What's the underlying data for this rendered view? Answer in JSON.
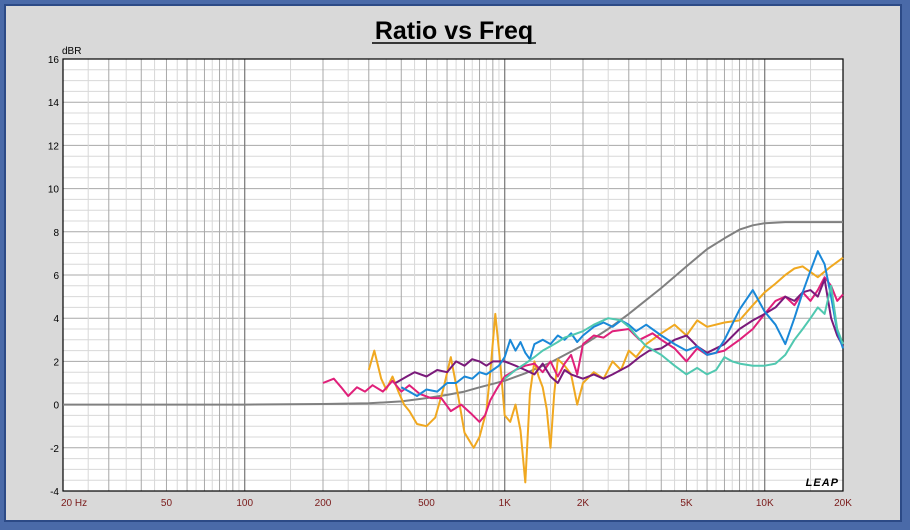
{
  "chart_data": {
    "type": "line",
    "title": "Ratio vs Freq",
    "ylabel": "dBR",
    "xlabel": "",
    "xscale": "log",
    "xlim": [
      20,
      20000
    ],
    "ylim": [
      -4,
      16
    ],
    "grid": true,
    "yticks": [
      "16",
      "14",
      "12",
      "10",
      "8",
      "6",
      "4",
      "2",
      "0",
      "-2",
      "-4"
    ],
    "ytick_values": [
      16,
      14,
      12,
      10,
      8,
      6,
      4,
      2,
      0,
      -2,
      -4
    ],
    "xticks": [
      "20  Hz",
      "50",
      "100",
      "200",
      "500",
      "1K",
      "2K",
      "5K",
      "10K",
      "20K"
    ],
    "xtick_values": [
      20,
      50,
      100,
      200,
      500,
      1000,
      2000,
      5000,
      10000,
      20000
    ],
    "watermark": "LEAP",
    "series": [
      {
        "color": "#808080",
        "points": [
          [
            20,
            0
          ],
          [
            100,
            0
          ],
          [
            200,
            0.03
          ],
          [
            300,
            0.06
          ],
          [
            400,
            0.15
          ],
          [
            500,
            0.3
          ],
          [
            600,
            0.45
          ],
          [
            700,
            0.6
          ],
          [
            800,
            0.8
          ],
          [
            1000,
            1.1
          ],
          [
            1200,
            1.45
          ],
          [
            1500,
            1.95
          ],
          [
            2000,
            2.75
          ],
          [
            2500,
            3.5
          ],
          [
            3000,
            4.2
          ],
          [
            4000,
            5.4
          ],
          [
            5000,
            6.4
          ],
          [
            6000,
            7.2
          ],
          [
            7000,
            7.7
          ],
          [
            8000,
            8.1
          ],
          [
            9000,
            8.3
          ],
          [
            10000,
            8.4
          ],
          [
            12000,
            8.45
          ],
          [
            15000,
            8.45
          ],
          [
            20000,
            8.45
          ]
        ]
      },
      {
        "color": "#f0a820",
        "points": [
          [
            300,
            1.6
          ],
          [
            315,
            2.5
          ],
          [
            335,
            1.2
          ],
          [
            350,
            0.7
          ],
          [
            370,
            1.3
          ],
          [
            390,
            0.6
          ],
          [
            410,
            0.0
          ],
          [
            430,
            -0.3
          ],
          [
            460,
            -0.9
          ],
          [
            500,
            -1.0
          ],
          [
            540,
            -0.6
          ],
          [
            580,
            0.7
          ],
          [
            620,
            2.2
          ],
          [
            660,
            0.5
          ],
          [
            700,
            -1.3
          ],
          [
            760,
            -2.0
          ],
          [
            800,
            -1.5
          ],
          [
            850,
            -0.3
          ],
          [
            880,
            1.5
          ],
          [
            920,
            4.2
          ],
          [
            960,
            2.0
          ],
          [
            1000,
            -0.5
          ],
          [
            1050,
            -0.8
          ],
          [
            1100,
            0.0
          ],
          [
            1150,
            -1.2
          ],
          [
            1200,
            -3.6
          ],
          [
            1250,
            0.5
          ],
          [
            1300,
            2.0
          ],
          [
            1350,
            1.3
          ],
          [
            1400,
            0.8
          ],
          [
            1450,
            -0.2
          ],
          [
            1500,
            -2.0
          ],
          [
            1550,
            0.5
          ],
          [
            1600,
            2.1
          ],
          [
            1700,
            1.8
          ],
          [
            1800,
            1.4
          ],
          [
            1900,
            0.0
          ],
          [
            2000,
            1.0
          ],
          [
            2200,
            1.5
          ],
          [
            2400,
            1.2
          ],
          [
            2600,
            2.0
          ],
          [
            2800,
            1.6
          ],
          [
            3000,
            2.5
          ],
          [
            3200,
            2.2
          ],
          [
            3500,
            2.8
          ],
          [
            4000,
            3.3
          ],
          [
            4500,
            3.7
          ],
          [
            5000,
            3.2
          ],
          [
            5500,
            3.9
          ],
          [
            6000,
            3.6
          ],
          [
            7000,
            3.8
          ],
          [
            8000,
            3.9
          ],
          [
            9000,
            4.6
          ],
          [
            10000,
            5.2
          ],
          [
            11000,
            5.6
          ],
          [
            12000,
            6.0
          ],
          [
            13000,
            6.3
          ],
          [
            14000,
            6.4
          ],
          [
            16000,
            5.9
          ],
          [
            18000,
            6.4
          ],
          [
            20000,
            6.8
          ]
        ]
      },
      {
        "color": "#e0207a",
        "points": [
          [
            200,
            1.0
          ],
          [
            220,
            1.2
          ],
          [
            235,
            0.8
          ],
          [
            250,
            0.4
          ],
          [
            270,
            0.8
          ],
          [
            290,
            0.6
          ],
          [
            310,
            0.9
          ],
          [
            340,
            0.6
          ],
          [
            370,
            1.1
          ],
          [
            400,
            0.6
          ],
          [
            430,
            0.9
          ],
          [
            470,
            0.5
          ],
          [
            520,
            0.3
          ],
          [
            570,
            0.3
          ],
          [
            620,
            -0.3
          ],
          [
            680,
            0.0
          ],
          [
            740,
            -0.4
          ],
          [
            800,
            -0.8
          ],
          [
            840,
            -0.5
          ],
          [
            880,
            0.2
          ],
          [
            940,
            0.8
          ],
          [
            1000,
            1.3
          ],
          [
            1100,
            1.6
          ],
          [
            1200,
            1.8
          ],
          [
            1300,
            1.9
          ],
          [
            1400,
            1.5
          ],
          [
            1500,
            2.0
          ],
          [
            1600,
            1.3
          ],
          [
            1700,
            1.9
          ],
          [
            1800,
            2.3
          ],
          [
            1900,
            1.4
          ],
          [
            2000,
            2.8
          ],
          [
            2200,
            3.2
          ],
          [
            2400,
            3.1
          ],
          [
            2600,
            3.4
          ],
          [
            3000,
            3.5
          ],
          [
            3300,
            3.0
          ],
          [
            3700,
            3.3
          ],
          [
            4000,
            3.0
          ],
          [
            4500,
            2.6
          ],
          [
            5000,
            2.0
          ],
          [
            5500,
            2.6
          ],
          [
            6000,
            2.3
          ],
          [
            7000,
            2.5
          ],
          [
            8000,
            3.0
          ],
          [
            9000,
            3.5
          ],
          [
            10000,
            4.2
          ],
          [
            11000,
            4.8
          ],
          [
            12000,
            5.0
          ],
          [
            13000,
            4.6
          ],
          [
            14000,
            5.2
          ],
          [
            15000,
            4.8
          ],
          [
            16000,
            5.3
          ],
          [
            17000,
            5.9
          ],
          [
            18000,
            5.5
          ],
          [
            19000,
            4.8
          ],
          [
            20000,
            5.1
          ]
        ]
      },
      {
        "color": "#7a1a7a",
        "points": [
          [
            380,
            1.0
          ],
          [
            420,
            1.3
          ],
          [
            450,
            1.5
          ],
          [
            500,
            1.3
          ],
          [
            550,
            1.6
          ],
          [
            600,
            1.5
          ],
          [
            650,
            2.0
          ],
          [
            700,
            1.8
          ],
          [
            750,
            2.1
          ],
          [
            800,
            2.0
          ],
          [
            850,
            1.8
          ],
          [
            900,
            2.0
          ],
          [
            1000,
            2.0
          ],
          [
            1100,
            1.8
          ],
          [
            1200,
            1.6
          ],
          [
            1300,
            1.4
          ],
          [
            1400,
            1.9
          ],
          [
            1500,
            1.3
          ],
          [
            1600,
            1.0
          ],
          [
            1700,
            1.6
          ],
          [
            1800,
            1.4
          ],
          [
            2000,
            1.2
          ],
          [
            2200,
            1.4
          ],
          [
            2400,
            1.2
          ],
          [
            2600,
            1.4
          ],
          [
            3000,
            1.8
          ],
          [
            3300,
            2.2
          ],
          [
            3600,
            2.5
          ],
          [
            4000,
            2.6
          ],
          [
            4500,
            3.0
          ],
          [
            5000,
            3.2
          ],
          [
            5500,
            2.7
          ],
          [
            6000,
            2.4
          ],
          [
            7000,
            2.8
          ],
          [
            8000,
            3.5
          ],
          [
            9000,
            3.9
          ],
          [
            10000,
            4.2
          ],
          [
            11000,
            4.5
          ],
          [
            12000,
            5.0
          ],
          [
            13000,
            4.8
          ],
          [
            14000,
            5.2
          ],
          [
            15000,
            5.3
          ],
          [
            16000,
            5.0
          ],
          [
            17000,
            5.8
          ],
          [
            18000,
            4.0
          ],
          [
            19000,
            3.2
          ],
          [
            20000,
            2.7
          ]
        ]
      },
      {
        "color": "#1a88d8",
        "points": [
          [
            400,
            0.8
          ],
          [
            430,
            0.6
          ],
          [
            460,
            0.4
          ],
          [
            500,
            0.7
          ],
          [
            550,
            0.6
          ],
          [
            600,
            1.0
          ],
          [
            650,
            1.0
          ],
          [
            700,
            1.3
          ],
          [
            750,
            1.2
          ],
          [
            800,
            1.5
          ],
          [
            850,
            1.4
          ],
          [
            900,
            1.6
          ],
          [
            950,
            1.8
          ],
          [
            1000,
            2.2
          ],
          [
            1050,
            3.0
          ],
          [
            1100,
            2.5
          ],
          [
            1150,
            2.9
          ],
          [
            1200,
            2.4
          ],
          [
            1250,
            2.1
          ],
          [
            1300,
            2.8
          ],
          [
            1400,
            3.0
          ],
          [
            1500,
            2.8
          ],
          [
            1600,
            3.2
          ],
          [
            1700,
            3.0
          ],
          [
            1800,
            3.3
          ],
          [
            1900,
            2.9
          ],
          [
            2000,
            3.2
          ],
          [
            2200,
            3.6
          ],
          [
            2400,
            3.8
          ],
          [
            2600,
            3.6
          ],
          [
            2800,
            3.9
          ],
          [
            3000,
            3.7
          ],
          [
            3200,
            3.4
          ],
          [
            3500,
            3.7
          ],
          [
            4000,
            3.2
          ],
          [
            4500,
            2.8
          ],
          [
            5000,
            2.5
          ],
          [
            5500,
            2.7
          ],
          [
            6000,
            2.3
          ],
          [
            6500,
            2.4
          ],
          [
            7000,
            3.0
          ],
          [
            8000,
            4.4
          ],
          [
            9000,
            5.3
          ],
          [
            10000,
            4.3
          ],
          [
            11000,
            3.7
          ],
          [
            12000,
            2.8
          ],
          [
            13000,
            4.0
          ],
          [
            14000,
            5.2
          ],
          [
            15000,
            6.2
          ],
          [
            16000,
            7.1
          ],
          [
            17000,
            6.5
          ],
          [
            18000,
            5.0
          ],
          [
            19000,
            3.4
          ],
          [
            20000,
            2.6
          ]
        ]
      },
      {
        "color": "#50c8b0",
        "points": [
          [
            1000,
            1.2
          ],
          [
            1100,
            1.6
          ],
          [
            1200,
            1.9
          ],
          [
            1300,
            2.2
          ],
          [
            1400,
            2.5
          ],
          [
            1500,
            2.7
          ],
          [
            1600,
            2.9
          ],
          [
            1700,
            3.1
          ],
          [
            1800,
            3.2
          ],
          [
            2000,
            3.4
          ],
          [
            2200,
            3.7
          ],
          [
            2500,
            4.0
          ],
          [
            2800,
            3.9
          ],
          [
            3000,
            3.6
          ],
          [
            3200,
            3.2
          ],
          [
            3500,
            2.7
          ],
          [
            4000,
            2.3
          ],
          [
            4500,
            1.8
          ],
          [
            5000,
            1.4
          ],
          [
            5500,
            1.7
          ],
          [
            6000,
            1.4
          ],
          [
            6500,
            1.6
          ],
          [
            7000,
            2.2
          ],
          [
            7500,
            2.0
          ],
          [
            8000,
            1.9
          ],
          [
            9000,
            1.8
          ],
          [
            10000,
            1.8
          ],
          [
            11000,
            1.9
          ],
          [
            12000,
            2.3
          ],
          [
            13000,
            3.0
          ],
          [
            14000,
            3.5
          ],
          [
            15000,
            4.0
          ],
          [
            16000,
            4.5
          ],
          [
            17000,
            4.2
          ],
          [
            18000,
            5.5
          ],
          [
            19000,
            3.5
          ],
          [
            20000,
            2.8
          ]
        ]
      }
    ]
  }
}
